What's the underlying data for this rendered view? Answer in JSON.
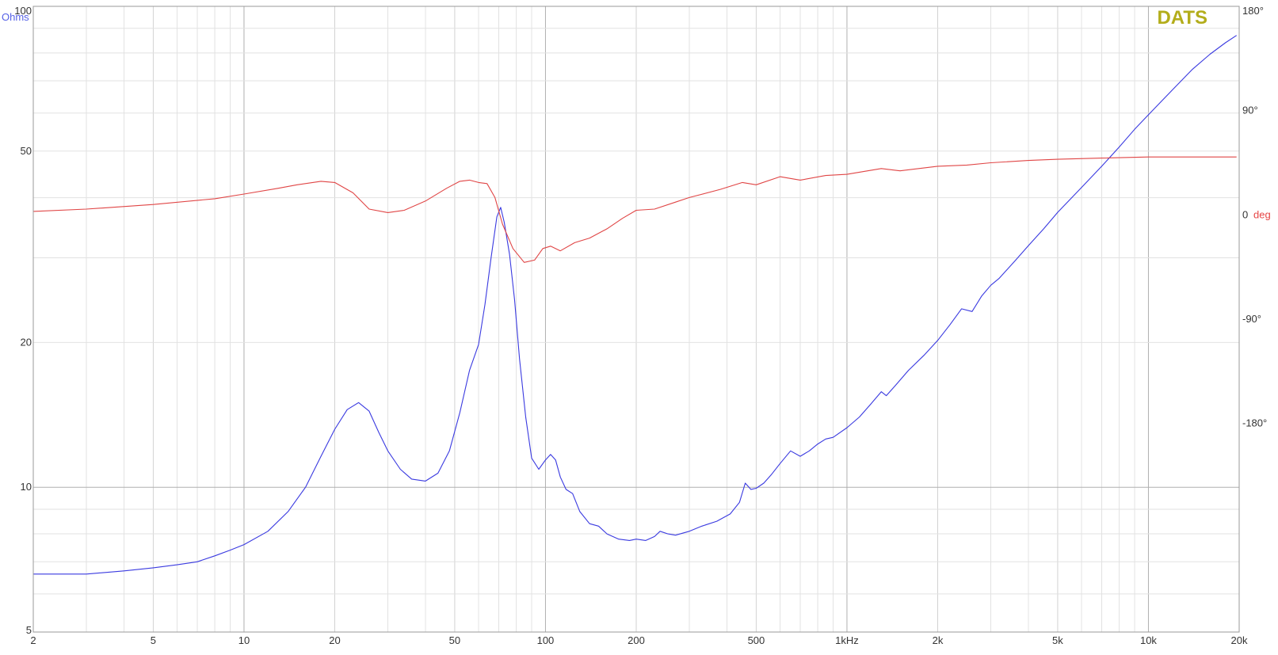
{
  "app": {
    "logo": "DATS",
    "logo_color": "#b3ad1b"
  },
  "chart_data": {
    "type": "line",
    "x_scale": "log",
    "xlim": [
      2,
      20000
    ],
    "x_ticks": [
      {
        "value": 2,
        "label": "2"
      },
      {
        "value": 5,
        "label": "5"
      },
      {
        "value": 10,
        "label": "10"
      },
      {
        "value": 20,
        "label": "20"
      },
      {
        "value": 50,
        "label": "50"
      },
      {
        "value": 100,
        "label": "100"
      },
      {
        "value": 200,
        "label": "200"
      },
      {
        "value": 500,
        "label": "500"
      },
      {
        "value": 1000,
        "label": "1kHz"
      },
      {
        "value": 2000,
        "label": "2k"
      },
      {
        "value": 5000,
        "label": "5k"
      },
      {
        "value": 10000,
        "label": "10k"
      },
      {
        "value": 20000,
        "label": "20k"
      }
    ],
    "y_left": {
      "label": "Ohms",
      "label_color": "#5560e6",
      "scale": "log",
      "lim": [
        5,
        100
      ],
      "ticks": [
        {
          "value": 100,
          "label": "100"
        },
        {
          "value": 50,
          "label": "50"
        },
        {
          "value": 20,
          "label": "20"
        },
        {
          "value": 10,
          "label": "10"
        },
        {
          "value": 5,
          "label": "5"
        }
      ]
    },
    "y_right": {
      "lim": [
        -360,
        180
      ],
      "ticks": [
        {
          "value": 180,
          "label": "180°"
        },
        {
          "value": 90,
          "label": "90°"
        },
        {
          "value": 0,
          "label": "0"
        },
        {
          "value": -90,
          "label": "-90°"
        },
        {
          "value": -180,
          "label": "-180°"
        }
      ],
      "unit_label": "deg",
      "unit_color": "#e64545"
    },
    "grid": true,
    "series": [
      {
        "axis": "left",
        "color": "#3a3ae0",
        "points": [
          [
            2,
            6.6
          ],
          [
            3,
            6.6
          ],
          [
            4,
            6.7
          ],
          [
            5,
            6.8
          ],
          [
            6,
            6.9
          ],
          [
            7,
            7.0
          ],
          [
            8,
            7.2
          ],
          [
            9,
            7.4
          ],
          [
            10,
            7.6
          ],
          [
            12,
            8.1
          ],
          [
            14,
            8.9
          ],
          [
            16,
            10.0
          ],
          [
            18,
            11.6
          ],
          [
            20,
            13.2
          ],
          [
            22,
            14.5
          ],
          [
            24,
            15.0
          ],
          [
            26,
            14.4
          ],
          [
            28,
            13.0
          ],
          [
            30,
            11.9
          ],
          [
            33,
            10.9
          ],
          [
            36,
            10.4
          ],
          [
            40,
            10.3
          ],
          [
            44,
            10.7
          ],
          [
            48,
            11.9
          ],
          [
            52,
            14.3
          ],
          [
            56,
            17.5
          ],
          [
            60,
            19.8
          ],
          [
            63,
            24.0
          ],
          [
            66,
            30.0
          ],
          [
            69,
            36.5
          ],
          [
            71,
            38.2
          ],
          [
            73,
            35.5
          ],
          [
            76,
            30.5
          ],
          [
            79,
            24.5
          ],
          [
            82,
            18.5
          ],
          [
            86,
            14.0
          ],
          [
            90,
            11.5
          ],
          [
            95,
            10.9
          ],
          [
            100,
            11.4
          ],
          [
            104,
            11.7
          ],
          [
            108,
            11.4
          ],
          [
            112,
            10.5
          ],
          [
            117,
            9.9
          ],
          [
            123,
            9.7
          ],
          [
            130,
            8.9
          ],
          [
            140,
            8.4
          ],
          [
            150,
            8.3
          ],
          [
            160,
            8.0
          ],
          [
            175,
            7.8
          ],
          [
            190,
            7.75
          ],
          [
            200,
            7.8
          ],
          [
            215,
            7.75
          ],
          [
            230,
            7.9
          ],
          [
            240,
            8.1
          ],
          [
            255,
            8.0
          ],
          [
            270,
            7.95
          ],
          [
            300,
            8.1
          ],
          [
            330,
            8.3
          ],
          [
            370,
            8.5
          ],
          [
            410,
            8.8
          ],
          [
            440,
            9.3
          ],
          [
            460,
            10.2
          ],
          [
            480,
            9.9
          ],
          [
            500,
            9.95
          ],
          [
            530,
            10.2
          ],
          [
            560,
            10.6
          ],
          [
            600,
            11.2
          ],
          [
            650,
            11.9
          ],
          [
            700,
            11.6
          ],
          [
            750,
            11.9
          ],
          [
            800,
            12.3
          ],
          [
            850,
            12.6
          ],
          [
            900,
            12.7
          ],
          [
            1000,
            13.3
          ],
          [
            1100,
            14.0
          ],
          [
            1200,
            14.9
          ],
          [
            1300,
            15.8
          ],
          [
            1350,
            15.5
          ],
          [
            1450,
            16.3
          ],
          [
            1600,
            17.5
          ],
          [
            1800,
            18.8
          ],
          [
            2000,
            20.2
          ],
          [
            2200,
            21.8
          ],
          [
            2400,
            23.5
          ],
          [
            2600,
            23.2
          ],
          [
            2800,
            25.0
          ],
          [
            3000,
            26.3
          ],
          [
            3200,
            27.2
          ],
          [
            3600,
            29.5
          ],
          [
            4000,
            31.8
          ],
          [
            4500,
            34.5
          ],
          [
            5000,
            37.3
          ],
          [
            6000,
            42.0
          ],
          [
            7000,
            46.5
          ],
          [
            8000,
            51.0
          ],
          [
            9000,
            55.5
          ],
          [
            10000,
            59.5
          ],
          [
            12000,
            67.0
          ],
          [
            14000,
            74.0
          ],
          [
            16000,
            79.5
          ],
          [
            18000,
            84.0
          ],
          [
            19600,
            87.0
          ]
        ]
      },
      {
        "axis": "right",
        "color": "#e04545",
        "points": [
          [
            2,
            3
          ],
          [
            3,
            5
          ],
          [
            5,
            9
          ],
          [
            8,
            14
          ],
          [
            10,
            18
          ],
          [
            13,
            23
          ],
          [
            15,
            26
          ],
          [
            18,
            29
          ],
          [
            20,
            28
          ],
          [
            23,
            19
          ],
          [
            26,
            5
          ],
          [
            30,
            2
          ],
          [
            34,
            4
          ],
          [
            40,
            12
          ],
          [
            47,
            23
          ],
          [
            52,
            29
          ],
          [
            56,
            30
          ],
          [
            60,
            28
          ],
          [
            64,
            27
          ],
          [
            68,
            15
          ],
          [
            72,
            -8
          ],
          [
            78,
            -29
          ],
          [
            85,
            -41
          ],
          [
            92,
            -39
          ],
          [
            98,
            -29
          ],
          [
            104,
            -27
          ],
          [
            112,
            -31
          ],
          [
            125,
            -24
          ],
          [
            140,
            -20
          ],
          [
            160,
            -12
          ],
          [
            180,
            -3
          ],
          [
            200,
            4
          ],
          [
            230,
            5
          ],
          [
            270,
            11
          ],
          [
            300,
            15
          ],
          [
            380,
            22
          ],
          [
            450,
            28
          ],
          [
            500,
            26
          ],
          [
            600,
            33
          ],
          [
            700,
            30
          ],
          [
            850,
            34
          ],
          [
            1000,
            35
          ],
          [
            1300,
            40
          ],
          [
            1500,
            38
          ],
          [
            2000,
            42
          ],
          [
            2500,
            43
          ],
          [
            3000,
            45
          ],
          [
            4000,
            47
          ],
          [
            5000,
            48
          ],
          [
            7000,
            49
          ],
          [
            10000,
            50
          ],
          [
            15000,
            50
          ],
          [
            19600,
            50
          ]
        ]
      }
    ]
  }
}
